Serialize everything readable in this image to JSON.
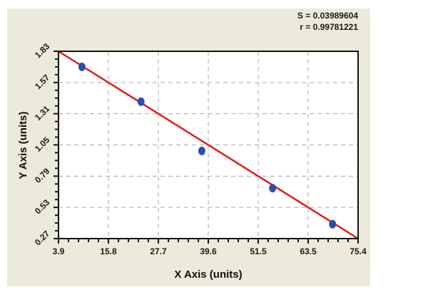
{
  "stats": {
    "s_label": "S = 0.03989604",
    "r_label": "r = 0.99781221"
  },
  "colors": {
    "panel_background": "#ECEADA",
    "plot_background": "#FFFFFF",
    "fit_line": "#E01B1B",
    "points": "#2A4FB0",
    "grid": "#A8A8A8",
    "axis": "#111111"
  },
  "chart_data": {
    "type": "scatter",
    "title": "",
    "xlabel": "X Axis (units)",
    "ylabel": "Y Axis (units)",
    "xlim": [
      3.9,
      75.4
    ],
    "ylim": [
      0.27,
      1.83
    ],
    "x_ticks": [
      "3.9",
      "15.8",
      "27.7",
      "39.6",
      "51.5",
      "63.5",
      "75.4"
    ],
    "y_ticks": [
      "0.27",
      "0.53",
      "0.79",
      "1.05",
      "1.31",
      "1.57",
      "1.83"
    ],
    "grid": true,
    "grid_style": "dashed",
    "legend": null,
    "annotations": [
      "S = 0.03989604",
      "r = 0.99781221"
    ],
    "series": [
      {
        "name": "data points",
        "type": "scatter",
        "x": [
          9.5,
          23.6,
          38.1,
          55.0,
          69.3
        ],
        "y": [
          1.7,
          1.41,
          1.0,
          0.69,
          0.39
        ]
      },
      {
        "name": "fit line",
        "type": "line",
        "x": [
          3.9,
          75.4
        ],
        "y": [
          1.83,
          0.27
        ]
      }
    ]
  }
}
